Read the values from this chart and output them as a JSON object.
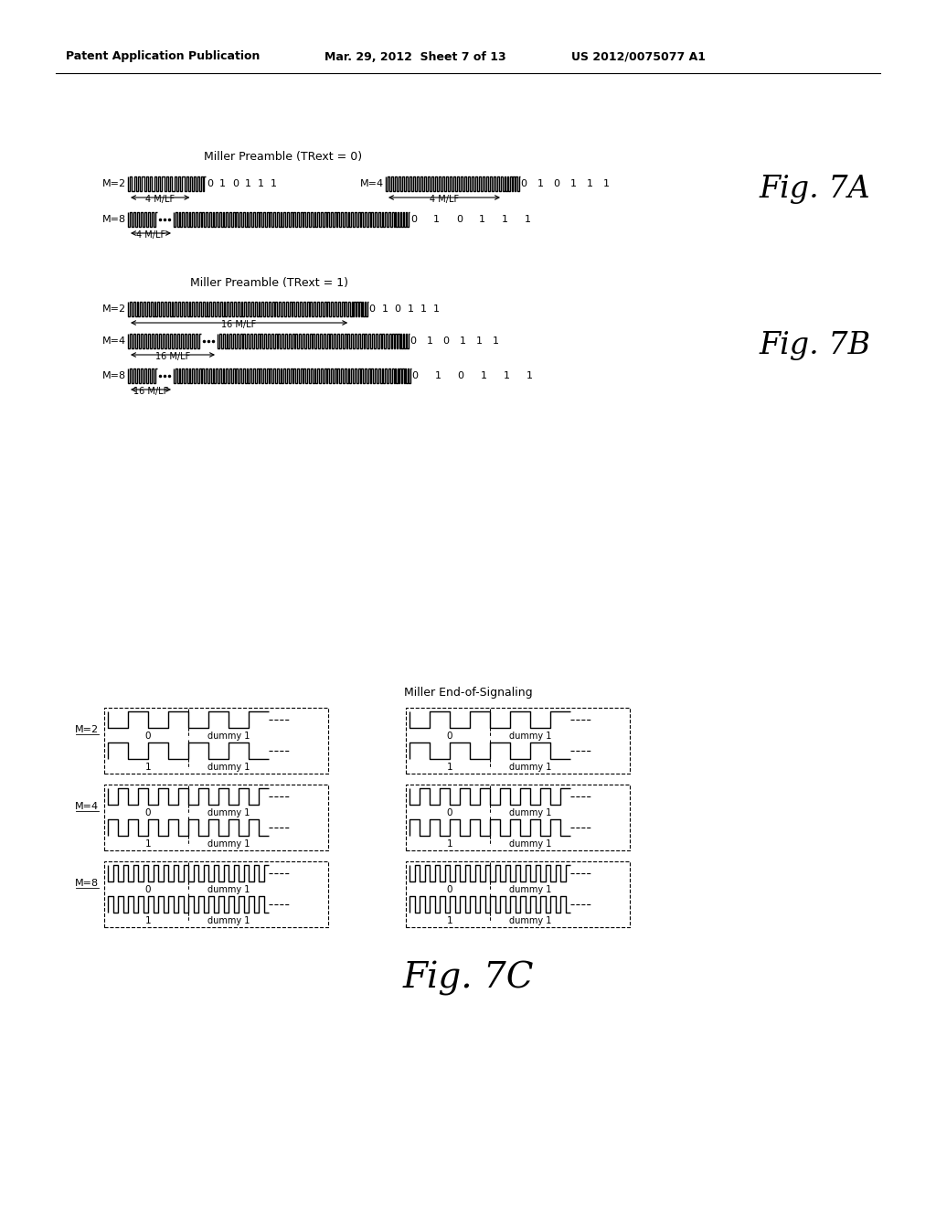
{
  "bg_color": "#ffffff",
  "text_color": "#000000",
  "header_left": "Patent Application Publication",
  "header_mid": "Mar. 29, 2012  Sheet 7 of 13",
  "header_right": "US 2012/0075077 A1",
  "fig7a_title": "Miller Preamble (TRext = 0)",
  "fig7b_title": "Miller Preamble (TRext = 1)",
  "fig7c_title": "Miller End-of-Signaling",
  "fig7a_label": "Fig. 7A",
  "fig7b_label": "Fig. 7B",
  "fig7c_label": "Fig. 7C",
  "bits_7a": [
    "0",
    "1",
    "0",
    "1",
    "1",
    "1"
  ],
  "bits_7b": [
    "0",
    "1",
    "0",
    "1",
    "1",
    "1"
  ]
}
